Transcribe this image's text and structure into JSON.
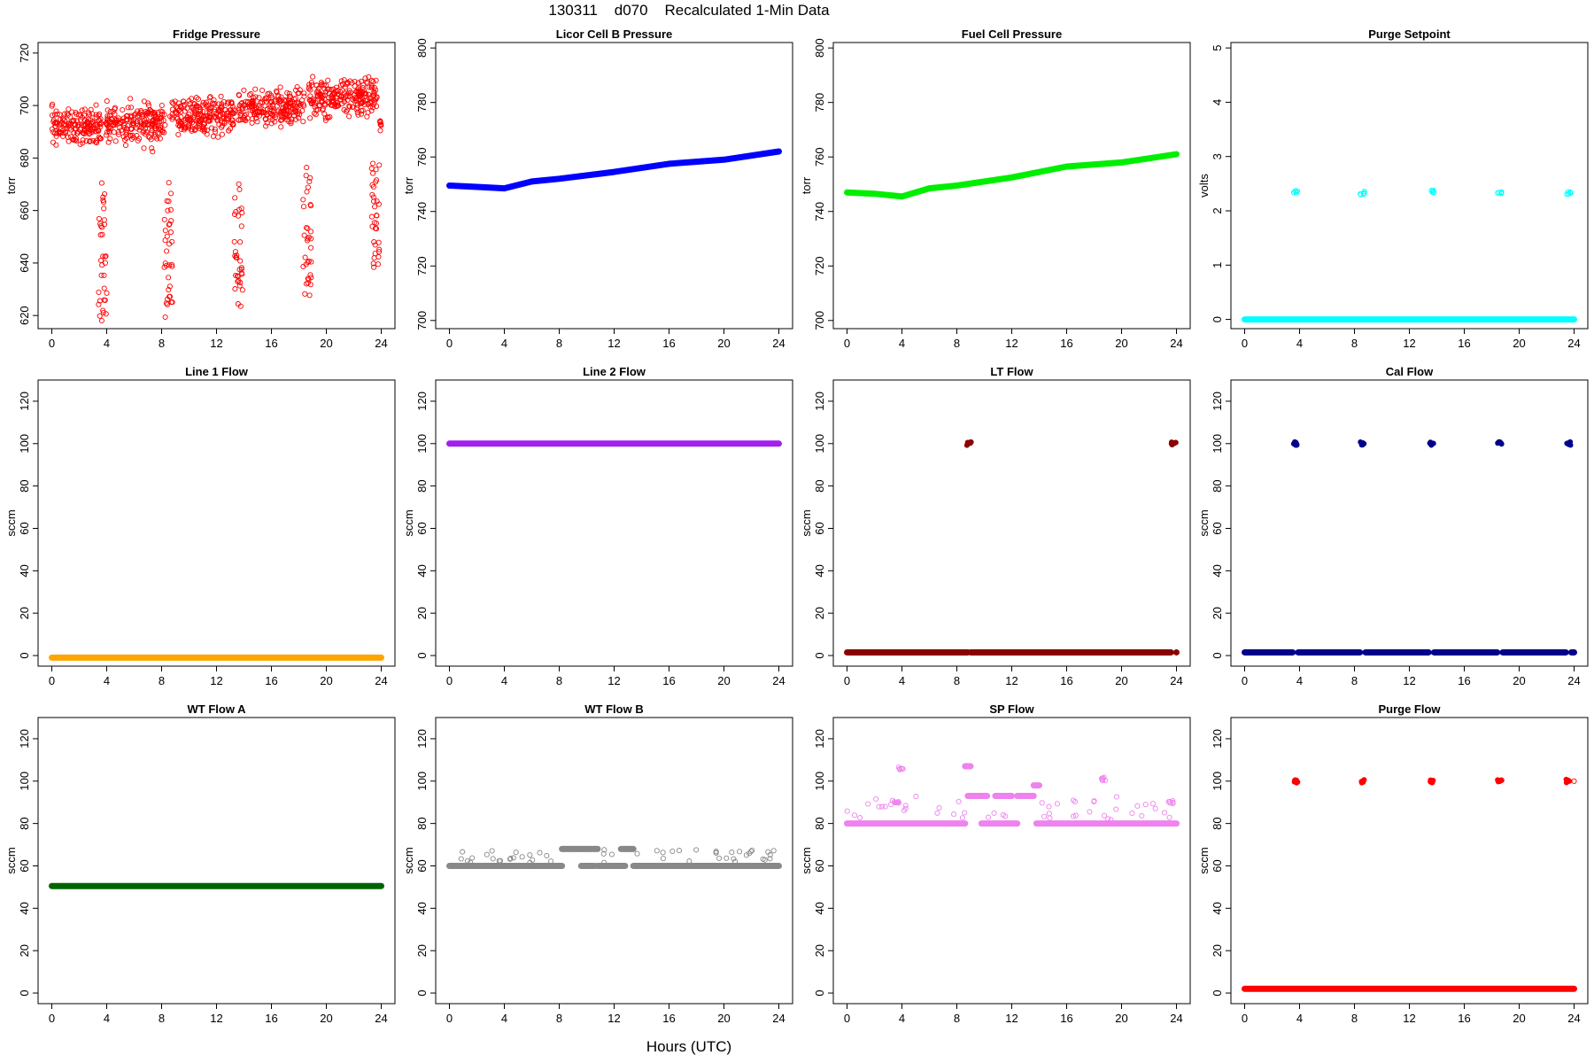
{
  "figure": {
    "title": "130311    d070    Recalculated 1-Min Data",
    "xlabel": "Hours (UTC)"
  },
  "chart_data": [
    {
      "type": "scatter",
      "title": "Fridge Pressure",
      "ylabel": "torr",
      "color": "#ff0000",
      "marker": "open",
      "xlim": [
        -1,
        25
      ],
      "ylim": [
        615,
        724
      ],
      "xticks": [
        0,
        4,
        8,
        12,
        16,
        20,
        24
      ],
      "yticks": [
        620,
        640,
        660,
        680,
        700,
        720
      ],
      "segments": [
        {
          "x": [
            0,
            3.6
          ],
          "mean": 692,
          "noise": 12
        },
        {
          "x": [
            3.9,
            8.3
          ],
          "mean": 693,
          "noise": 12
        },
        {
          "x": [
            8.6,
            13.3
          ],
          "mean": 696,
          "noise": 12
        },
        {
          "x": [
            13.6,
            18.4
          ],
          "mean": 699,
          "noise": 12
        },
        {
          "x": [
            18.7,
            23.7
          ],
          "mean": 703,
          "noise": 12
        },
        {
          "x": [
            23.9,
            24.0
          ],
          "mean": 692,
          "noise": 4
        }
      ],
      "dips": [
        {
          "x": [
            3.4,
            4.0
          ],
          "y": [
            618,
            675
          ]
        },
        {
          "x": [
            8.2,
            8.8
          ],
          "y": [
            618,
            673
          ]
        },
        {
          "x": [
            13.3,
            13.9
          ],
          "y": [
            623,
            673
          ]
        },
        {
          "x": [
            18.3,
            18.9
          ],
          "y": [
            626,
            678
          ]
        },
        {
          "x": [
            23.3,
            23.9
          ],
          "y": [
            638,
            682
          ]
        }
      ]
    },
    {
      "type": "line",
      "title": "Licor Cell B Pressure",
      "ylabel": "torr",
      "color": "#0000ff",
      "xlim": [
        -1,
        25
      ],
      "ylim": [
        697,
        802
      ],
      "xticks": [
        0,
        4,
        8,
        12,
        16,
        20,
        24
      ],
      "yticks": [
        700,
        720,
        740,
        760,
        780,
        800
      ],
      "x": [
        0,
        2,
        4,
        6,
        8,
        12,
        16,
        20,
        24
      ],
      "y": [
        749.5,
        749,
        748.5,
        751,
        752,
        754.5,
        757.5,
        759,
        762
      ]
    },
    {
      "type": "line",
      "title": "Fuel Cell Pressure",
      "ylabel": "torr",
      "color": "#00ee00",
      "xlim": [
        -1,
        25
      ],
      "ylim": [
        697,
        802
      ],
      "xticks": [
        0,
        4,
        8,
        12,
        16,
        20,
        24
      ],
      "yticks": [
        700,
        720,
        740,
        760,
        780,
        800
      ],
      "x": [
        0,
        2,
        4,
        6,
        8,
        12,
        16,
        20,
        24
      ],
      "y": [
        747,
        746.5,
        745.5,
        748.5,
        749.5,
        752.5,
        756.5,
        758,
        761
      ]
    },
    {
      "type": "scatter",
      "title": "Purge Setpoint",
      "ylabel": "volts",
      "color": "#00ffff",
      "marker": "open",
      "xlim": [
        -1,
        25
      ],
      "ylim": [
        -0.17,
        5.1
      ],
      "xticks": [
        0,
        4,
        8,
        12,
        16,
        20,
        24
      ],
      "yticks": [
        0,
        1,
        2,
        3,
        4,
        5
      ],
      "baseline": 0,
      "clusters": [
        {
          "x": 3.7,
          "y": 2.35
        },
        {
          "x": 8.6,
          "y": 2.33
        },
        {
          "x": 13.6,
          "y": 2.35
        },
        {
          "x": 18.6,
          "y": 2.35
        },
        {
          "x": 23.6,
          "y": 2.33
        }
      ]
    },
    {
      "type": "line",
      "title": "Line 1 Flow",
      "ylabel": "sccm",
      "color": "#ffa500",
      "xlim": [
        -1,
        25
      ],
      "ylim": [
        -5,
        130
      ],
      "xticks": [
        0,
        4,
        8,
        12,
        16,
        20,
        24
      ],
      "yticks": [
        0,
        20,
        40,
        60,
        80,
        100,
        120
      ],
      "x": [
        0,
        24
      ],
      "y": [
        -1,
        -1
      ]
    },
    {
      "type": "line",
      "title": "Line 2 Flow",
      "ylabel": "sccm",
      "color": "#a020f0",
      "xlim": [
        -1,
        25
      ],
      "ylim": [
        -5,
        130
      ],
      "xticks": [
        0,
        4,
        8,
        12,
        16,
        20,
        24
      ],
      "yticks": [
        0,
        20,
        40,
        60,
        80,
        100,
        120
      ],
      "x": [
        0,
        24
      ],
      "y": [
        100,
        100
      ]
    },
    {
      "type": "scatter",
      "title": "LT Flow",
      "ylabel": "sccm",
      "color": "#8b0000",
      "marker": "filled",
      "xlim": [
        -1,
        25
      ],
      "ylim": [
        -5,
        130
      ],
      "xticks": [
        0,
        4,
        8,
        12,
        16,
        20,
        24
      ],
      "yticks": [
        0,
        20,
        40,
        60,
        80,
        100,
        120
      ],
      "baseline": 1.5,
      "gaps": [
        8.8,
        9.0,
        23.6,
        24.0
      ],
      "clusters": [
        {
          "x": 8.9,
          "y": 100
        },
        {
          "x": 23.8,
          "y": 100
        }
      ]
    },
    {
      "type": "scatter",
      "title": "Cal Flow",
      "ylabel": "sccm",
      "color": "#00008b",
      "marker": "filled",
      "xlim": [
        -1,
        25
      ],
      "ylim": [
        -5,
        130
      ],
      "xticks": [
        0,
        4,
        8,
        12,
        16,
        20,
        24
      ],
      "yticks": [
        0,
        20,
        40,
        60,
        80,
        100,
        120
      ],
      "baseline": 1.5,
      "gaps": [
        3.5,
        3.9,
        8.4,
        8.8,
        13.4,
        13.8,
        18.4,
        18.8,
        23.4,
        23.8
      ],
      "clusters": [
        {
          "x": 3.7,
          "y": 100
        },
        {
          "x": 8.6,
          "y": 100
        },
        {
          "x": 13.6,
          "y": 100
        },
        {
          "x": 18.6,
          "y": 100
        },
        {
          "x": 23.6,
          "y": 100
        }
      ],
      "open_points": [
        {
          "x": 24,
          "y": 1.5
        }
      ]
    },
    {
      "type": "line",
      "title": "WT Flow A",
      "ylabel": "sccm",
      "color": "#006400",
      "xlim": [
        -1,
        25
      ],
      "ylim": [
        -5,
        130
      ],
      "xticks": [
        0,
        4,
        8,
        12,
        16,
        20,
        24
      ],
      "yticks": [
        0,
        20,
        40,
        60,
        80,
        100,
        120
      ],
      "x": [
        0,
        24
      ],
      "y": [
        50.5,
        50.5
      ]
    },
    {
      "type": "scatter",
      "title": "WT Flow B",
      "ylabel": "sccm",
      "color": "#888888",
      "marker": "open",
      "xlim": [
        -1,
        25
      ],
      "ylim": [
        -5,
        130
      ],
      "xticks": [
        0,
        4,
        8,
        12,
        16,
        20,
        24
      ],
      "yticks": [
        0,
        20,
        40,
        60,
        80,
        100,
        120
      ],
      "bands": [
        {
          "x": [
            0,
            8.2
          ],
          "y": 60,
          "upper": 68
        },
        {
          "x": [
            8.2,
            9.6
          ],
          "y": 68,
          "upper": 68
        },
        {
          "x": [
            9.6,
            10.8
          ],
          "y": 68,
          "upper": 68
        },
        {
          "x": [
            9.6,
            10.6
          ],
          "y": 60,
          "upper": 60
        },
        {
          "x": [
            10.8,
            12.5
          ],
          "y": 60,
          "upper": 68
        },
        {
          "x": [
            12.5,
            13.4
          ],
          "y": 68,
          "upper": 68
        },
        {
          "x": [
            12.2,
            12.8
          ],
          "y": 60,
          "upper": 60
        },
        {
          "x": [
            13.4,
            24
          ],
          "y": 60,
          "upper": 68
        }
      ]
    },
    {
      "type": "scatter",
      "title": "SP Flow",
      "ylabel": "sccm",
      "color": "#ee82ee",
      "marker": "open",
      "xlim": [
        -1,
        25
      ],
      "ylim": [
        -5,
        130
      ],
      "xticks": [
        0,
        4,
        8,
        12,
        16,
        20,
        24
      ],
      "yticks": [
        0,
        20,
        40,
        60,
        80,
        100,
        120
      ],
      "bands": [
        {
          "x": [
            0,
            8.6
          ],
          "y": 80,
          "upper": 93
        },
        {
          "x": [
            8.6,
            9.0
          ],
          "y": 107,
          "upper": 107
        },
        {
          "x": [
            8.8,
            10.2
          ],
          "y": 93,
          "upper": 93
        },
        {
          "x": [
            9.8,
            11.6
          ],
          "y": 80,
          "upper": 85
        },
        {
          "x": [
            10.8,
            12.0
          ],
          "y": 93,
          "upper": 93
        },
        {
          "x": [
            11.6,
            12.4
          ],
          "y": 80,
          "upper": 80
        },
        {
          "x": [
            12.4,
            13.6
          ],
          "y": 93,
          "upper": 93
        },
        {
          "x": [
            13.6,
            14.0
          ],
          "y": 98,
          "upper": 98
        },
        {
          "x": [
            13.8,
            24
          ],
          "y": 80,
          "upper": 93
        }
      ],
      "clusters": [
        {
          "x": 3.9,
          "y": 106
        },
        {
          "x": 3.6,
          "y": 90
        },
        {
          "x": 18.7,
          "y": 101
        },
        {
          "x": 23.6,
          "y": 90
        }
      ]
    },
    {
      "type": "scatter",
      "title": "Purge Flow",
      "ylabel": "sccm",
      "color": "#ff0000",
      "marker": "filled",
      "xlim": [
        -1,
        25
      ],
      "ylim": [
        -5,
        130
      ],
      "xticks": [
        0,
        4,
        8,
        12,
        16,
        20,
        24
      ],
      "yticks": [
        0,
        20,
        40,
        60,
        80,
        100,
        120
      ],
      "baseline": 2,
      "clusters": [
        {
          "x": 3.7,
          "y": 100
        },
        {
          "x": 8.6,
          "y": 100
        },
        {
          "x": 13.6,
          "y": 100
        },
        {
          "x": 18.6,
          "y": 100
        },
        {
          "x": 23.6,
          "y": 100
        }
      ],
      "open_points": [
        {
          "x": 24,
          "y": 100
        }
      ]
    }
  ]
}
